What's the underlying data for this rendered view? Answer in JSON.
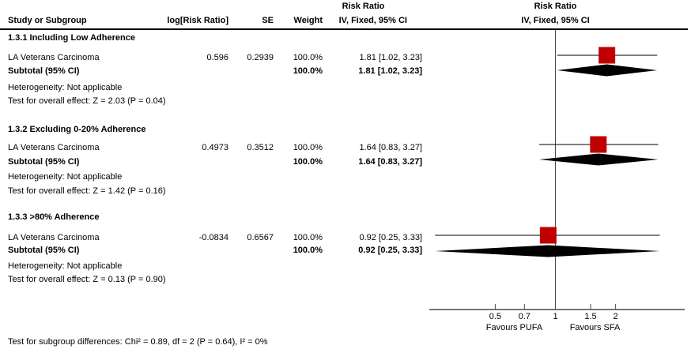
{
  "header": {
    "col_study": "Study or Subgroup",
    "col_log_rr": "log[Risk Ratio]",
    "col_se": "SE",
    "col_weight": "Weight",
    "col_effect_line1": "Risk Ratio",
    "col_effect_line2": "IV, Fixed, 95% CI",
    "plot_line1": "Risk Ratio",
    "plot_line2": "IV, Fixed, 95% CI"
  },
  "subgroups": [
    {
      "title": "1.3.1 Including Low Adherence",
      "study": {
        "name": "LA Veterans Carcinoma",
        "log_rr": "0.596",
        "se": "0.2939",
        "weight": "100.0%",
        "ci_text": "1.81 [1.02, 3.23]"
      },
      "subtotal": {
        "label": "Subtotal (95% CI)",
        "weight": "100.0%",
        "ci_text": "1.81 [1.02, 3.23]"
      },
      "heterogeneity": "Heterogeneity: Not applicable",
      "overall_effect": "Test for overall effect: Z = 2.03 (P = 0.04)"
    },
    {
      "title": "1.3.2 Excluding 0-20% Adherence",
      "study": {
        "name": "LA Veterans Carcinoma",
        "log_rr": "0.4973",
        "se": "0.3512",
        "weight": "100.0%",
        "ci_text": "1.64 [0.83, 3.27]"
      },
      "subtotal": {
        "label": "Subtotal (95% CI)",
        "weight": "100.0%",
        "ci_text": "1.64 [0.83, 3.27]"
      },
      "heterogeneity": "Heterogeneity: Not applicable",
      "overall_effect": "Test for overall effect: Z = 1.42 (P = 0.16)"
    },
    {
      "title": "1.3.3 >80% Adherence",
      "study": {
        "name": "LA Veterans Carcinoma",
        "log_rr": "-0.0834",
        "se": "0.6567",
        "weight": "100.0%",
        "ci_text": "0.92 [0.25, 3.33]"
      },
      "subtotal": {
        "label": "Subtotal (95% CI)",
        "weight": "100.0%",
        "ci_text": "0.92 [0.25, 3.33]"
      },
      "heterogeneity": "Heterogeneity: Not applicable",
      "overall_effect": "Test for overall effect: Z = 0.13 (P = 0.90)"
    }
  ],
  "footer": "Test for subgroup differences: Chi² = 0.89, df = 2 (P = 0.64), I² = 0%",
  "chart_data": {
    "type": "forest",
    "effect_measure": "Risk Ratio",
    "method": "IV, Fixed, 95% CI",
    "x_scale": "log",
    "null_value": 1,
    "x_ticks": [
      0.5,
      0.7,
      1,
      1.5,
      2
    ],
    "x_tick_labels": [
      "0.5",
      "0.7",
      "1",
      "1.5",
      "2"
    ],
    "favours_left": "Favours PUFA",
    "favours_right": "Favours SFA",
    "marker_color": "#c00000",
    "diamond_color": "#000000",
    "subgroups": [
      {
        "name": "1.3.1 Including Low Adherence",
        "study": {
          "label": "LA Veterans Carcinoma",
          "est": 1.81,
          "lo": 1.02,
          "hi": 3.23,
          "weight_pct": 100.0
        },
        "subtotal": {
          "est": 1.81,
          "lo": 1.02,
          "hi": 3.23
        }
      },
      {
        "name": "1.3.2 Excluding 0-20% Adherence",
        "study": {
          "label": "LA Veterans Carcinoma",
          "est": 1.64,
          "lo": 0.83,
          "hi": 3.27,
          "weight_pct": 100.0
        },
        "subtotal": {
          "est": 1.64,
          "lo": 0.83,
          "hi": 3.27
        }
      },
      {
        "name": "1.3.3 >80% Adherence",
        "study": {
          "label": "LA Veterans Carcinoma",
          "est": 0.92,
          "lo": 0.25,
          "hi": 3.33,
          "weight_pct": 100.0
        },
        "subtotal": {
          "est": 0.92,
          "lo": 0.25,
          "hi": 3.33
        }
      }
    ]
  }
}
